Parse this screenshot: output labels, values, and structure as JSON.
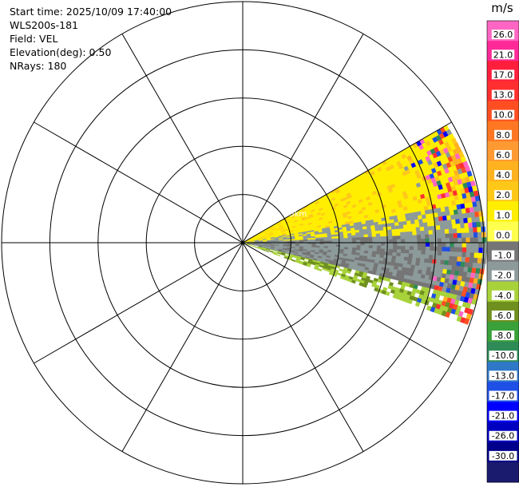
{
  "header": {
    "start_time": "Start time: 2025/10/09 17:40:00",
    "instrument": "WLS200s-181",
    "field": "Field: VEL",
    "elevation": "Elevation(deg): 0.50",
    "nrays": "NRays: 180"
  },
  "colorbar": {
    "unit": "m/s",
    "ticks": [
      "26.0",
      "21.0",
      "17.0",
      "13.0",
      "10.0",
      "8.0",
      "6.0",
      "4.0",
      "2.0",
      "1.0",
      "0.0",
      "-1.0",
      "-2.0",
      "-4.0",
      "-6.0",
      "-8.0",
      "-10.0",
      "-13.0",
      "-17.0",
      "-21.0",
      "-26.0",
      "-30.0"
    ],
    "bands": [
      "#ff66c4",
      "#ff2a98",
      "#ff1f3d",
      "#ff2f2f",
      "#ff4f22",
      "#ff7722",
      "#ff9a33",
      "#ffb21f",
      "#ffc819",
      "#ffee00",
      "#ffff4d",
      "#757575",
      "#8d9a9a",
      "#a8d23a",
      "#6f8f1f",
      "#3aa03a",
      "#2e8b57",
      "#2f78c8",
      "#1e4fe6",
      "#0000ff",
      "#0000c0",
      "#00008b",
      "#1a1a6e"
    ]
  },
  "chart_data": {
    "type": "heatmap",
    "projection": "polar-ppi",
    "range_rings": 5,
    "azimuth_spokes_deg": 30,
    "range_label": "~5km",
    "sector_azimuth_deg": [
      60,
      110
    ],
    "field": "VEL",
    "units": "m/s",
    "value_range": [
      -30,
      26
    ],
    "regions": [
      {
        "name": "yellow",
        "value_approx": 2.0
      },
      {
        "name": "gray",
        "value_approx": 0.0
      },
      {
        "name": "green",
        "value_approx": -2.0
      },
      {
        "name": "noise",
        "value_approx": "mixed"
      }
    ]
  }
}
